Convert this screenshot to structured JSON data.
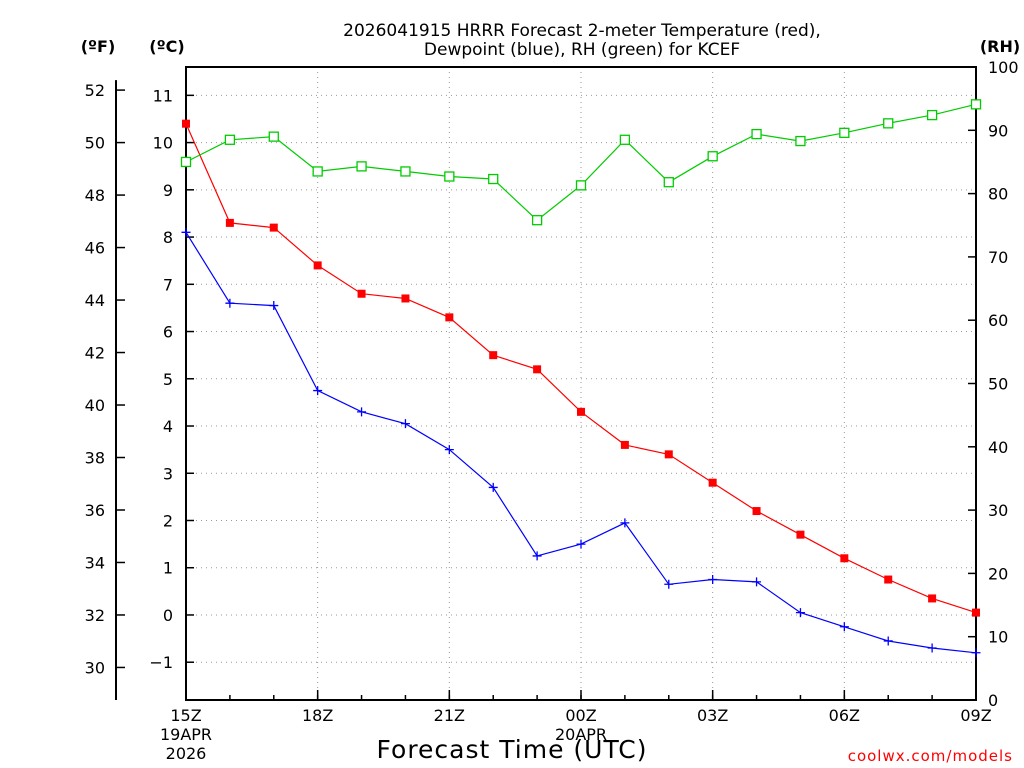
{
  "chart_data": {
    "type": "line",
    "title_line1": "2026041915 HRRR Forecast 2-meter Temperature (red),",
    "title_line2": "Dewpoint (blue), RH (green) for KCEF",
    "xlabel": "Forecast Time (UTC)",
    "credit": "coolwx.com/models",
    "axis_units": {
      "fahrenheit": "(ºF)",
      "celsius": "(ºC)",
      "rh": "(RH)"
    },
    "x_ticks": [
      {
        "hour": 0,
        "label": "15Z",
        "sub1": "19APR",
        "sub2": "2026"
      },
      {
        "hour": 3,
        "label": "18Z",
        "sub1": "",
        "sub2": ""
      },
      {
        "hour": 6,
        "label": "21Z",
        "sub1": "",
        "sub2": ""
      },
      {
        "hour": 9,
        "label": "00Z",
        "sub1": "20APR",
        "sub2": ""
      },
      {
        "hour": 12,
        "label": "03Z",
        "sub1": "",
        "sub2": ""
      },
      {
        "hour": 15,
        "label": "06Z",
        "sub1": "",
        "sub2": ""
      },
      {
        "hour": 18,
        "label": "09Z",
        "sub1": "",
        "sub2": ""
      }
    ],
    "xlim": [
      0,
      18
    ],
    "ylim_celsius": [
      -1.8,
      11.6
    ],
    "ylim_rh": [
      0,
      100
    ],
    "celsius_ticks": [
      -1,
      0,
      1,
      2,
      3,
      4,
      5,
      6,
      7,
      8,
      9,
      10,
      11
    ],
    "fahrenheit_ticks": [
      30,
      32,
      34,
      36,
      38,
      40,
      42,
      44,
      46,
      48,
      50,
      52
    ],
    "rh_ticks": [
      0,
      10,
      20,
      30,
      40,
      50,
      60,
      70,
      80,
      90,
      100
    ],
    "hours": [
      0,
      1,
      2,
      3,
      4,
      5,
      6,
      7,
      8,
      9,
      10,
      11,
      12,
      13,
      14,
      15,
      16,
      17,
      18
    ],
    "series": [
      {
        "name": "Temperature",
        "unit": "C",
        "color": "#ff0000",
        "marker": "filled-square",
        "values": [
          10.4,
          8.3,
          8.2,
          7.4,
          6.8,
          6.7,
          6.3,
          5.5,
          5.2,
          4.3,
          3.6,
          3.4,
          2.8,
          2.2,
          1.7,
          1.2,
          0.75,
          0.35,
          0.05
        ]
      },
      {
        "name": "Dewpoint",
        "unit": "C",
        "color": "#0000ff",
        "marker": "plus",
        "values": [
          8.1,
          6.6,
          6.55,
          4.75,
          4.3,
          4.05,
          3.5,
          2.7,
          1.25,
          1.5,
          1.95,
          0.65,
          0.75,
          0.7,
          0.05,
          -0.25,
          -0.55,
          -0.7,
          -0.8
        ]
      },
      {
        "name": "RH",
        "unit": "%",
        "color": "#00cc00",
        "marker": "open-square",
        "values": [
          85,
          88.5,
          89,
          83.5,
          84.3,
          83.5,
          82.7,
          82.3,
          75.8,
          81.3,
          88.5,
          81.8,
          85.9,
          89.4,
          88.3,
          89.6,
          91.1,
          92.4,
          94.1
        ]
      }
    ]
  }
}
